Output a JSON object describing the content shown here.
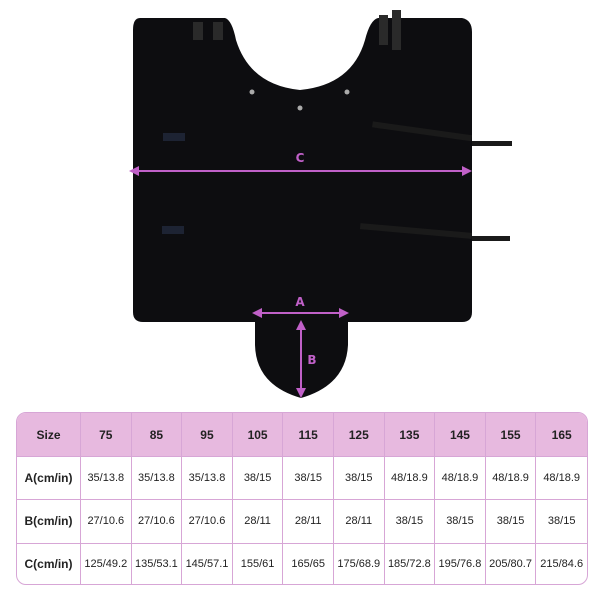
{
  "diagram": {
    "labels": {
      "c": "C",
      "a": "A",
      "b": "B"
    },
    "colors": {
      "blanket": "#0d0d10",
      "dimension": "#c060c8",
      "table_header": "#e7b9df",
      "table_border": "#d7a6d6"
    }
  },
  "size_table": {
    "header": [
      "Size",
      "75",
      "85",
      "95",
      "105",
      "115",
      "125",
      "135",
      "145",
      "155",
      "165"
    ],
    "rows": [
      [
        "A(cm/in)",
        "35/13.8",
        "35/13.8",
        "35/13.8",
        "38/15",
        "38/15",
        "38/15",
        "48/18.9",
        "48/18.9",
        "48/18.9",
        "48/18.9"
      ],
      [
        "B(cm/in)",
        "27/10.6",
        "27/10.6",
        "27/10.6",
        "28/11",
        "28/11",
        "28/11",
        "38/15",
        "38/15",
        "38/15",
        "38/15"
      ],
      [
        "C(cm/in)",
        "125/49.2",
        "135/53.1",
        "145/57.1",
        "155/61",
        "165/65",
        "175/68.9",
        "185/72.8",
        "195/76.8",
        "205/80.7",
        "215/84.6"
      ]
    ]
  }
}
